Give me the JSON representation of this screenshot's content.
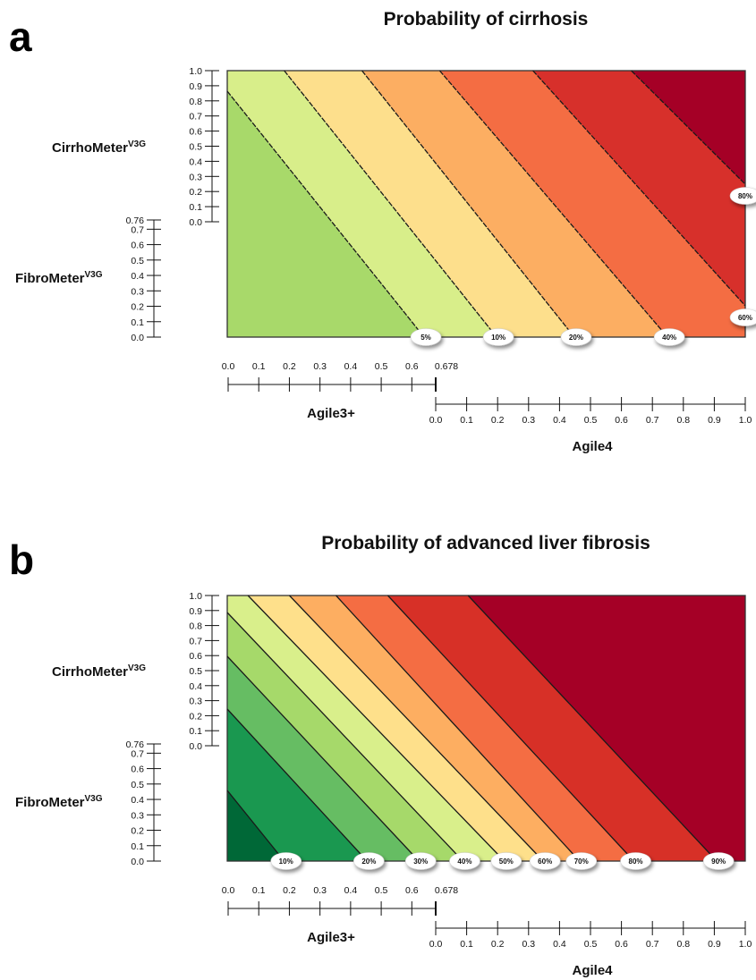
{
  "chart_data": [
    {
      "panel": "a",
      "type": "contour",
      "title": "Probability of cirrhosis",
      "axes": {
        "cirrhometer": {
          "name": "CirrhoMeter",
          "sup": "V3G",
          "range": [
            0,
            1.0
          ],
          "ticks": [
            "1.0",
            "0.9",
            "0.8",
            "0.7",
            "0.6",
            "0.5",
            "0.4",
            "0.3",
            "0.2",
            "0.1",
            "0.0"
          ]
        },
        "fibrometer": {
          "name": "FibroMeter",
          "sup": "V3G",
          "range": [
            0,
            0.76
          ],
          "ticks": [
            "0.76",
            "0.7",
            "0.6",
            "0.5",
            "0.4",
            "0.3",
            "0.2",
            "0.1",
            "0.0"
          ]
        },
        "agile3": {
          "name": "Agile3+",
          "range": [
            0,
            0.678
          ],
          "ticks": [
            "0.0",
            "0.1",
            "0.2",
            "0.3",
            "0.4",
            "0.5",
            "0.6",
            "0.678"
          ]
        },
        "agile4": {
          "name": "Agile4",
          "range": [
            0,
            1.0
          ],
          "ticks": [
            "0.0",
            "0.1",
            "0.2",
            "0.3",
            "0.4",
            "0.5",
            "0.6",
            "0.7",
            "0.8",
            "0.9",
            "1.0"
          ]
        }
      },
      "contour_labels": [
        "5%",
        "10%",
        "20%",
        "40%",
        "60%",
        "80%"
      ],
      "contours": [
        {
          "label": "5%",
          "top_at_x": 0.0,
          "bottom_at_x": 0.38
        },
        {
          "label": "10%",
          "top_at_x": 0.11,
          "bottom_at_x": 0.52
        },
        {
          "label": "20%",
          "top_at_x": 0.26,
          "bottom_at_x": 0.67
        },
        {
          "label": "40%",
          "top_at_x": 0.41,
          "bottom_at_x": 0.85
        },
        {
          "label": "60%",
          "top_at_x": 0.59,
          "bottom_at_x": 1.0
        },
        {
          "label": "80%",
          "top_at_x": 0.78,
          "bottom_at_x": 1.0
        }
      ],
      "band_colors": [
        "#a8d96a",
        "#d8ee8a",
        "#fddf8c",
        "#fcae62",
        "#f46d43",
        "#d7302b",
        "#a50026"
      ]
    },
    {
      "panel": "b",
      "type": "contour",
      "title": "Probability of advanced liver fibrosis",
      "axes": {
        "cirrhometer": {
          "name": "CirrhoMeter",
          "sup": "V3G",
          "range": [
            0,
            1.0
          ],
          "ticks": [
            "1.0",
            "0.9",
            "0.8",
            "0.7",
            "0.6",
            "0.5",
            "0.4",
            "0.3",
            "0.2",
            "0.1",
            "0.0"
          ]
        },
        "fibrometer": {
          "name": "FibroMeter",
          "sup": "V3G",
          "range": [
            0,
            0.76
          ],
          "ticks": [
            "0.76",
            "0.7",
            "0.6",
            "0.5",
            "0.4",
            "0.3",
            "0.2",
            "0.1",
            "0.0"
          ]
        },
        "agile3": {
          "name": "Agile3+",
          "range": [
            0,
            0.678
          ],
          "ticks": [
            "0.0",
            "0.1",
            "0.2",
            "0.3",
            "0.4",
            "0.5",
            "0.6",
            "0.678"
          ]
        },
        "agile4": {
          "name": "Agile4",
          "range": [
            0,
            1.0
          ],
          "ticks": [
            "0.0",
            "0.1",
            "0.2",
            "0.3",
            "0.4",
            "0.5",
            "0.6",
            "0.7",
            "0.8",
            "0.9",
            "1.0"
          ]
        }
      },
      "contour_labels": [
        "10%",
        "20%",
        "30%",
        "40%",
        "50%",
        "60%",
        "70%",
        "80%",
        "90%"
      ],
      "contours": [
        {
          "label": "10%",
          "top_at_x": 0.0,
          "bottom_at_x": 0.11
        },
        {
          "label": "20%",
          "top_at_x": 0.0,
          "bottom_at_x": 0.27
        },
        {
          "label": "30%",
          "top_at_x": 0.0,
          "bottom_at_x": 0.37
        },
        {
          "label": "40%",
          "top_at_x": 0.0,
          "bottom_at_x": 0.455
        },
        {
          "label": "50%",
          "top_at_x": 0.04,
          "bottom_at_x": 0.535
        },
        {
          "label": "60%",
          "top_at_x": 0.12,
          "bottom_at_x": 0.61
        },
        {
          "label": "70%",
          "top_at_x": 0.21,
          "bottom_at_x": 0.68
        },
        {
          "label": "80%",
          "top_at_x": 0.31,
          "bottom_at_x": 0.785
        },
        {
          "label": "90%",
          "top_at_x": 0.465,
          "bottom_at_x": 0.945
        }
      ],
      "band_colors": [
        "#006837",
        "#1a9850",
        "#66bd63",
        "#a6d96a",
        "#d9ef8b",
        "#fee08b",
        "#fdae61",
        "#f46d43",
        "#d73027",
        "#a50026"
      ]
    }
  ],
  "panels": {
    "a": {
      "letter": "a",
      "title": "Probability of cirrhosis"
    },
    "b": {
      "letter": "b",
      "title": "Probability of advanced liver fibrosis"
    }
  }
}
